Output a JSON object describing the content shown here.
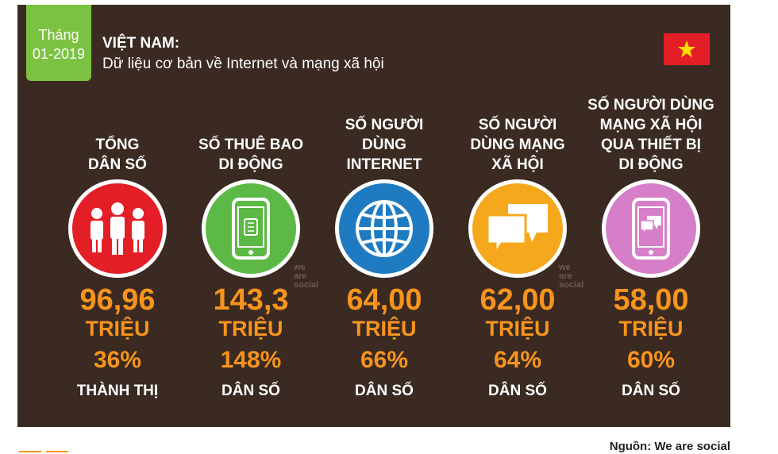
{
  "header": {
    "date_line1": "Tháng",
    "date_line2": "01-2019",
    "country": "VIỆT NAM:",
    "subtitle": "Dữ liệu cơ bản về Internet và mạng xã hội"
  },
  "colors": {
    "background": "#3a2a22",
    "badge": "#7cc242",
    "accent": "#f7941d",
    "circle_population": "#e41e26",
    "circle_mobile": "#5cb946",
    "circle_internet": "#1f7bc1",
    "circle_social": "#f6a81c",
    "circle_mobile_social": "#d67fc8"
  },
  "stats": [
    {
      "label": "TỔNG\nDÂN SỐ",
      "icon": "people-icon",
      "value": "96,96",
      "unit": "TRIỆU",
      "pct": "36%",
      "sub": "THÀNH THỊ"
    },
    {
      "label": "SỐ THUÊ BAO\nDI ĐỘNG",
      "icon": "mobile-phone-icon",
      "value": "143,3",
      "unit": "TRIỆU",
      "pct": "148%",
      "sub": "DÂN SỐ"
    },
    {
      "label": "SỐ NGƯỜI\nDÙNG\nINTERNET",
      "icon": "globe-icon",
      "value": "64,00",
      "unit": "TRIỆU",
      "pct": "66%",
      "sub": "DÂN SỐ"
    },
    {
      "label": "SỐ NGƯỜI\nDÙNG MẠNG\nXÃ HỘI",
      "icon": "chat-bubbles-icon",
      "value": "62,00",
      "unit": "TRIỆU",
      "pct": "64%",
      "sub": "DÂN SỐ"
    },
    {
      "label": "SỐ NGƯỜI DÙNG\nMẠNG XÃ HỘI\nQUA THIẾT BỊ\nDI ĐỘNG",
      "icon": "phone-chat-icon",
      "value": "58,00",
      "unit": "TRIỆU",
      "pct": "60%",
      "sub": "DÂN SỐ"
    }
  ],
  "watermark": {
    "line1": "we",
    "line2": "are",
    "line3": "social"
  },
  "source": "Nguồn: We are social"
}
